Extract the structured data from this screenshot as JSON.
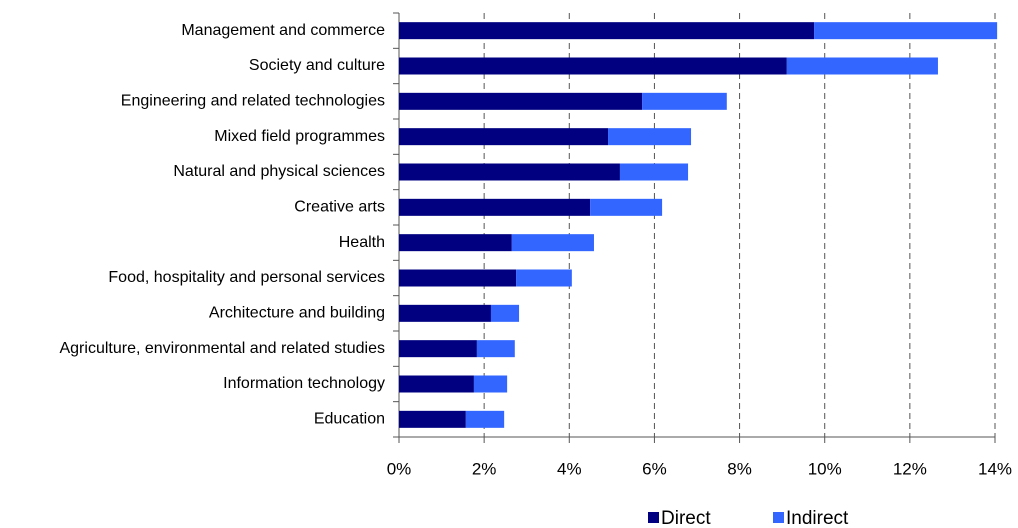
{
  "chart_data": {
    "type": "bar",
    "orientation": "horizontal",
    "stacked": true,
    "categories": [
      "Management and commerce",
      "Society and culture",
      "Engineering and related technologies",
      "Mixed field programmes",
      "Natural and physical sciences",
      "Creative arts",
      "Health",
      "Food, hospitality and personal services",
      "Architecture and building",
      "Agriculture, environmental and related studies",
      "Information technology",
      "Education"
    ],
    "series": [
      {
        "name": "Direct",
        "color": "#000080",
        "values": [
          9.75,
          9.11,
          5.71,
          4.91,
          5.19,
          4.49,
          2.65,
          2.75,
          2.16,
          1.83,
          1.76,
          1.57
        ]
      },
      {
        "name": "Indirect",
        "color": "#3366ff",
        "values": [
          4.3,
          3.55,
          1.99,
          1.95,
          1.6,
          1.69,
          1.93,
          1.31,
          0.66,
          0.89,
          0.78,
          0.9
        ]
      }
    ],
    "xlim": [
      0,
      14
    ],
    "xticks": [
      {
        "value": 0,
        "label": "0%"
      },
      {
        "value": 2,
        "label": "2%"
      },
      {
        "value": 4,
        "label": "4%"
      },
      {
        "value": 6,
        "label": "6%"
      },
      {
        "value": 8,
        "label": "8%"
      },
      {
        "value": 10,
        "label": "10%"
      },
      {
        "value": 12,
        "label": "12%"
      },
      {
        "value": 14,
        "label": "14%"
      }
    ],
    "grid": true,
    "legend": "bottom"
  }
}
